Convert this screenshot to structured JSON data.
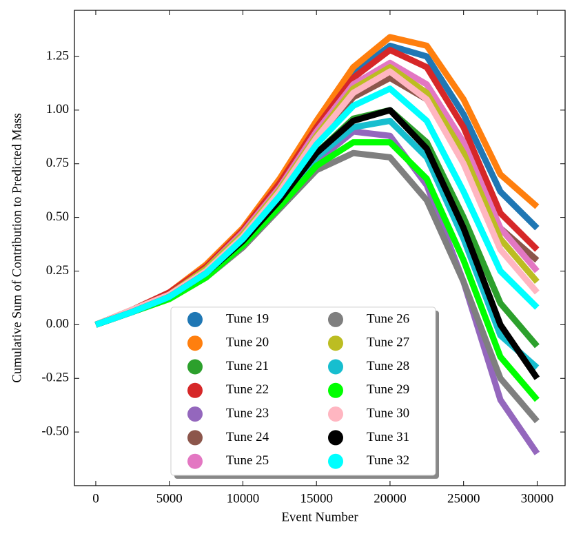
{
  "chart_data": {
    "type": "line",
    "x_label": "Event Number",
    "y_label": "Cumulative Sum of Contribution to Predicted Mass",
    "x": [
      0,
      2500,
      5000,
      7500,
      10000,
      12500,
      15000,
      17500,
      20000,
      22500,
      25000,
      27500,
      30000
    ],
    "xlim": [
      -1450,
      31900
    ],
    "ylim": [
      -0.75,
      1.465
    ],
    "xticks": [
      0,
      5000,
      10000,
      15000,
      20000,
      25000,
      30000
    ],
    "yticks": [
      {
        "value": -0.5,
        "label": "-0.50"
      },
      -0.25,
      {
        "value": 0,
        "label": "0.00"
      },
      0.25,
      {
        "value": 0.5,
        "label": "0.50"
      },
      0.75,
      {
        "value": 1,
        "label": "1.00"
      },
      1.25
    ],
    "legend": "lower center",
    "series": [
      {
        "name": "Tune 19",
        "color": "#1f77b4",
        "values": [
          0,
          0.07,
          0.15,
          0.27,
          0.44,
          0.66,
          0.93,
          1.17,
          1.3,
          1.25,
          0.98,
          0.62,
          0.45
        ]
      },
      {
        "name": "Tune 20",
        "color": "#ff7f0e",
        "values": [
          0,
          0.07,
          0.15,
          0.28,
          0.45,
          0.68,
          0.95,
          1.2,
          1.34,
          1.3,
          1.05,
          0.7,
          0.55
        ]
      },
      {
        "name": "Tune 21",
        "color": "#2ca02c",
        "values": [
          0,
          0.06,
          0.13,
          0.24,
          0.39,
          0.58,
          0.8,
          0.96,
          1.0,
          0.85,
          0.5,
          0.1,
          -0.1
        ]
      },
      {
        "name": "Tune 22",
        "color": "#d62728",
        "values": [
          0,
          0.07,
          0.15,
          0.27,
          0.44,
          0.66,
          0.92,
          1.15,
          1.28,
          1.2,
          0.92,
          0.52,
          0.35
        ]
      },
      {
        "name": "Tune 23",
        "color": "#9467bd",
        "values": [
          0,
          0.06,
          0.12,
          0.22,
          0.37,
          0.56,
          0.76,
          0.9,
          0.88,
          0.65,
          0.2,
          -0.35,
          -0.6
        ]
      },
      {
        "name": "Tune 24",
        "color": "#8c564b",
        "values": [
          0,
          0.07,
          0.14,
          0.25,
          0.41,
          0.61,
          0.86,
          1.06,
          1.15,
          1.05,
          0.78,
          0.45,
          0.3
        ]
      },
      {
        "name": "Tune 25",
        "color": "#e377c2",
        "values": [
          0,
          0.07,
          0.14,
          0.26,
          0.43,
          0.64,
          0.9,
          1.12,
          1.22,
          1.12,
          0.85,
          0.45,
          0.25
        ]
      },
      {
        "name": "Tune 26",
        "color": "#7f7f7f",
        "values": [
          0,
          0.06,
          0.12,
          0.22,
          0.36,
          0.54,
          0.72,
          0.8,
          0.78,
          0.58,
          0.2,
          -0.25,
          -0.45
        ]
      },
      {
        "name": "Tune 27",
        "color": "#bcbd22",
        "values": [
          0,
          0.07,
          0.14,
          0.26,
          0.42,
          0.63,
          0.88,
          1.1,
          1.2,
          1.08,
          0.8,
          0.4,
          0.2
        ]
      },
      {
        "name": "Tune 28",
        "color": "#17becf",
        "values": [
          0,
          0.06,
          0.13,
          0.23,
          0.38,
          0.57,
          0.78,
          0.92,
          0.95,
          0.78,
          0.4,
          -0.05,
          -0.2
        ]
      },
      {
        "name": "Tune 29",
        "color": "#00ff00",
        "values": [
          0,
          0.06,
          0.12,
          0.22,
          0.37,
          0.55,
          0.74,
          0.85,
          0.85,
          0.68,
          0.3,
          -0.15,
          -0.35
        ]
      },
      {
        "name": "Tune 30",
        "color": "#ffb6c1",
        "values": [
          0,
          0.07,
          0.14,
          0.25,
          0.41,
          0.62,
          0.87,
          1.08,
          1.18,
          1.05,
          0.75,
          0.35,
          0.15
        ]
      },
      {
        "name": "Tune 31",
        "color": "#000000",
        "values": [
          0,
          0.06,
          0.13,
          0.24,
          0.39,
          0.58,
          0.8,
          0.95,
          1.0,
          0.82,
          0.45,
          0.0,
          -0.25
        ]
      },
      {
        "name": "Tune 32",
        "color": "#00ffff",
        "values": [
          0,
          0.06,
          0.13,
          0.24,
          0.4,
          0.6,
          0.84,
          1.02,
          1.1,
          0.95,
          0.62,
          0.25,
          0.08
        ]
      }
    ]
  }
}
